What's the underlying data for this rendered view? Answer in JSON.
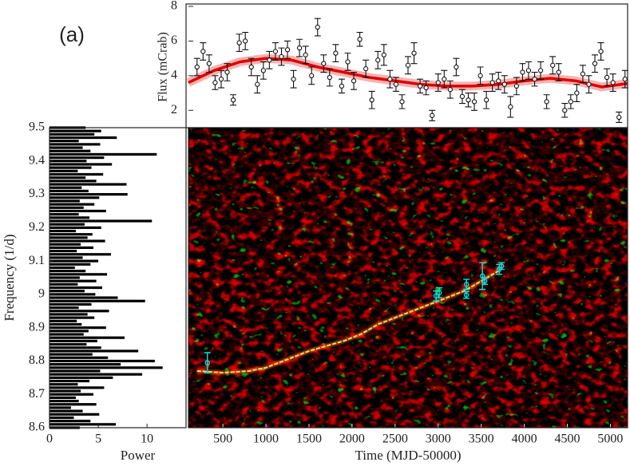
{
  "label": "(a)",
  "chart_data": [
    {
      "type": "errorbar",
      "ylabel": "Flux (mCrab)",
      "color": "#111111",
      "x": [
        200,
        270,
        340,
        410,
        480,
        550,
        620,
        690,
        760,
        830,
        900,
        970,
        1040,
        1110,
        1180,
        1250,
        1320,
        1390,
        1460,
        1530,
        1600,
        1670,
        1740,
        1810,
        1880,
        1950,
        2020,
        2090,
        2160,
        2230,
        2300,
        2370,
        2440,
        2510,
        2580,
        2650,
        2720,
        2790,
        2860,
        2930,
        3000,
        3070,
        3140,
        3210,
        3280,
        3350,
        3420,
        3490,
        3560,
        3630,
        3700,
        3770,
        3840,
        3910,
        3980,
        4050,
        4120,
        4190,
        4260,
        4330,
        4400,
        4470,
        4540,
        4610,
        4680,
        4750,
        4820,
        4890,
        4960,
        5030,
        5100,
        5170
      ],
      "values": [
        4.5,
        5.4,
        4.7,
        3.6,
        3.8,
        4.2,
        2.6,
        5.9,
        6.0,
        4.5,
        3.5,
        4.3,
        4.9,
        5.4,
        5.1,
        5.5,
        3.8,
        5.6,
        5.2,
        4.0,
        6.8,
        4.7,
        3.9,
        5.3,
        3.4,
        4.8,
        3.7,
        6.1,
        4.4,
        2.6,
        4.9,
        5.2,
        3.8,
        3.5,
        2.5,
        4.6,
        5.3,
        3.4,
        3.3,
        1.7,
        3.6,
        3.8,
        3.2,
        4.5,
        2.8,
        2.6,
        2.5,
        4.0,
        2.6,
        3.6,
        3.7,
        3.5,
        2.2,
        3.4,
        4.2,
        4.3,
        3.8,
        4.3,
        2.5,
        4.6,
        4.2,
        2.0,
        2.5,
        3.0,
        4.1,
        3.5,
        4.7,
        5.4,
        3.9,
        3.6,
        1.6,
        3.8
      ],
      "errors": [
        0.5,
        0.5,
        0.5,
        0.4,
        0.5,
        0.5,
        0.3,
        0.5,
        0.5,
        0.5,
        0.5,
        0.5,
        0.5,
        0.5,
        0.5,
        0.5,
        0.5,
        0.5,
        0.5,
        0.5,
        0.5,
        0.5,
        0.5,
        0.5,
        0.4,
        0.5,
        0.5,
        0.4,
        0.5,
        0.5,
        0.5,
        0.6,
        0.5,
        0.4,
        0.4,
        0.5,
        0.6,
        0.4,
        0.4,
        0.3,
        0.5,
        0.5,
        0.5,
        0.5,
        0.4,
        0.4,
        0.5,
        0.5,
        0.5,
        0.5,
        0.5,
        0.5,
        0.6,
        0.5,
        0.5,
        0.5,
        0.4,
        0.5,
        0.4,
        0.5,
        0.5,
        0.4,
        0.4,
        0.5,
        0.5,
        0.5,
        0.5,
        0.5,
        0.5,
        0.5,
        0.3,
        0.5
      ],
      "fit": {
        "color": "#e00000",
        "x": [
          100,
          400,
          700,
          1000,
          1300,
          1600,
          1900,
          2200,
          2500,
          2800,
          3100,
          3400,
          3700,
          4000,
          4300,
          4600,
          4900,
          5200
        ],
        "values": [
          3.6,
          4.3,
          4.8,
          5.0,
          4.9,
          4.5,
          4.2,
          3.9,
          3.7,
          3.5,
          3.4,
          3.4,
          3.5,
          3.7,
          3.85,
          3.7,
          3.35,
          3.55
        ]
      },
      "xlim": [
        100,
        5200
      ],
      "ylim": [
        1,
        8
      ],
      "yticks": [
        2,
        4,
        6,
        8
      ]
    },
    {
      "type": "periodogram",
      "xlabel": "Power",
      "ylabel": "Frequency (1/d)",
      "color": "#000000",
      "frequencies": [
        8.6,
        8.61,
        8.62,
        8.63,
        8.64,
        8.65,
        8.66,
        8.67,
        8.68,
        8.69,
        8.7,
        8.71,
        8.72,
        8.73,
        8.74,
        8.75,
        8.76,
        8.77,
        8.78,
        8.79,
        8.8,
        8.81,
        8.82,
        8.83,
        8.84,
        8.85,
        8.86,
        8.87,
        8.88,
        8.89,
        8.9,
        8.91,
        8.92,
        8.93,
        8.94,
        8.95,
        8.96,
        8.97,
        8.98,
        8.99,
        9.0,
        9.01,
        9.02,
        9.03,
        9.04,
        9.05,
        9.06,
        9.07,
        9.08,
        9.09,
        9.1,
        9.11,
        9.12,
        9.13,
        9.14,
        9.15,
        9.16,
        9.17,
        9.18,
        9.19,
        9.2,
        9.21,
        9.22,
        9.23,
        9.24,
        9.25,
        9.26,
        9.27,
        9.28,
        9.29,
        9.3,
        9.31,
        9.32,
        9.33,
        9.34,
        9.35,
        9.36,
        9.37,
        9.38,
        9.39,
        9.4,
        9.41,
        9.42,
        9.43,
        9.44,
        9.45,
        9.46,
        9.47,
        9.48,
        9.49,
        9.5
      ],
      "values": [
        3.1,
        6.8,
        4.2,
        2.5,
        5.1,
        3.4,
        2.2,
        4.8,
        3.0,
        2.7,
        4.5,
        3.2,
        5.6,
        2.9,
        4.1,
        6.5,
        9.5,
        5.2,
        11.6,
        7.3,
        10.8,
        6.0,
        4.4,
        9.1,
        5.3,
        3.8,
        4.9,
        7.7,
        3.5,
        4.0,
        5.8,
        3.3,
        2.8,
        4.6,
        3.9,
        6.1,
        3.0,
        4.3,
        9.8,
        7.0,
        4.7,
        3.6,
        5.4,
        2.9,
        4.8,
        3.1,
        5.9,
        3.7,
        2.6,
        4.2,
        5.0,
        3.4,
        6.3,
        2.8,
        4.5,
        3.2,
        5.7,
        3.9,
        4.4,
        2.7,
        5.3,
        3.6,
        10.5,
        4.1,
        3.0,
        5.8,
        3.5,
        4.6,
        3.1,
        5.1,
        8.0,
        4.0,
        3.3,
        7.9,
        4.8,
        3.7,
        5.5,
        2.9,
        4.3,
        6.4,
        3.8,
        5.6,
        11.0,
        4.2,
        3.4,
        5.2,
        3.0,
        6.9,
        4.6,
        5.3,
        3.7
      ],
      "xlim": [
        0,
        14
      ],
      "ylim": [
        8.6,
        9.5
      ],
      "xticks": [
        0,
        5,
        10
      ],
      "yticks": [
        8.6,
        8.7,
        8.8,
        8.9,
        9,
        9.1,
        9.2,
        9.3,
        9.4,
        9.5
      ]
    },
    {
      "type": "dynamic",
      "xlabel": "Time (MJD-50000)",
      "xlim": [
        100,
        5200
      ],
      "ylim": [
        8.6,
        9.5
      ],
      "xticks": [
        500,
        1000,
        1500,
        2000,
        2500,
        3000,
        3500,
        4000,
        4500,
        5000
      ],
      "ridge": {
        "color": "#ffd27a",
        "x": [
          200,
          500,
          800,
          1000,
          1100,
          1300,
          1500,
          1700,
          1900,
          2100,
          2300,
          2500,
          2700,
          2900,
          3100,
          3300,
          3500,
          3700
        ],
        "values": [
          8.77,
          8.765,
          8.77,
          8.78,
          8.79,
          8.81,
          8.83,
          8.845,
          8.86,
          8.88,
          8.91,
          8.93,
          8.95,
          8.97,
          8.99,
          9.01,
          9.04,
          9.07
        ]
      },
      "points": {
        "color": "#00e5e5",
        "x": [
          320,
          2976,
          3013,
          3328,
          3328,
          3514,
          3541,
          3709,
          3736
        ],
        "values": [
          8.795,
          8.995,
          9.005,
          8.998,
          9.03,
          9.055,
          9.04,
          9.075,
          9.085
        ],
        "errors": [
          0.03,
          0.015,
          0.015,
          0.01,
          0.015,
          0.04,
          0.01,
          0.015,
          0.01
        ]
      }
    }
  ]
}
